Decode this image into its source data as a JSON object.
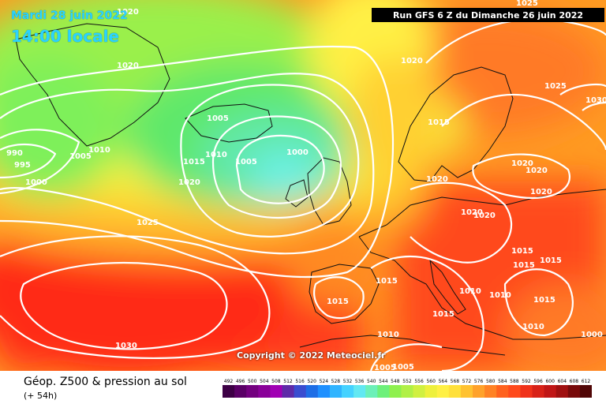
{
  "header": {
    "date": "Mardi 28 juin 2022",
    "time": "14:00 locale",
    "run": "Run GFS 6 Z du Dimanche 26 juin 2022"
  },
  "copyright": "Copyright © 2022 Meteociel.fr",
  "footer": {
    "title": "Géop. Z500 & pression au sol",
    "subtitle": "(+ 54h)"
  },
  "colors": {
    "land_outline": "#111111",
    "isobar": "#ffffff",
    "label_date": "#2bd3ff"
  },
  "isobar_labels": [
    {
      "text": "1020"
    },
    {
      "text": "1020"
    },
    {
      "text": "990"
    },
    {
      "text": "995"
    },
    {
      "text": "1000"
    },
    {
      "text": "1005"
    },
    {
      "text": "1010"
    },
    {
      "text": "1005"
    },
    {
      "text": "1010"
    },
    {
      "text": "1015"
    },
    {
      "text": "1005"
    },
    {
      "text": "1000"
    },
    {
      "text": "1020"
    },
    {
      "text": "1025"
    },
    {
      "text": "1030"
    },
    {
      "text": "1025"
    },
    {
      "text": "1020"
    },
    {
      "text": "1025"
    },
    {
      "text": "1030"
    },
    {
      "text": "1015"
    },
    {
      "text": "1020"
    },
    {
      "text": "1020"
    },
    {
      "text": "1020"
    },
    {
      "text": "1020"
    },
    {
      "text": "1020"
    },
    {
      "text": "1020"
    },
    {
      "text": "1015"
    },
    {
      "text": "1015"
    },
    {
      "text": "1015"
    },
    {
      "text": "1015"
    },
    {
      "text": "1015"
    },
    {
      "text": "1015"
    },
    {
      "text": "1010"
    },
    {
      "text": "1010"
    },
    {
      "text": "1015"
    },
    {
      "text": "1010"
    },
    {
      "text": "1010"
    },
    {
      "text": "1005"
    },
    {
      "text": "1005"
    },
    {
      "text": "1000"
    }
  ],
  "scale": {
    "values": [
      "492",
      "496",
      "500",
      "504",
      "508",
      "512",
      "516",
      "520",
      "524",
      "528",
      "532",
      "536",
      "540",
      "544",
      "548",
      "552",
      "556",
      "560",
      "564",
      "568",
      "572",
      "576",
      "580",
      "584",
      "588",
      "592",
      "596",
      "600",
      "604",
      "608",
      "612"
    ],
    "colors": [
      "#3d0045",
      "#5a0066",
      "#73007f",
      "#8a0099",
      "#a000b3",
      "#5f2aa8",
      "#3a4dd0",
      "#1e6ee6",
      "#1f90ff",
      "#30b4ff",
      "#45d2ff",
      "#62e8f2",
      "#6cf0b8",
      "#6df07a",
      "#8ef04e",
      "#b0f046",
      "#d0f040",
      "#eef03c",
      "#fff044",
      "#ffe03a",
      "#ffc230",
      "#ffa22a",
      "#ff8224",
      "#ff621e",
      "#ff4a1c",
      "#f0321a",
      "#d82218",
      "#c01616",
      "#a01010",
      "#780a0a",
      "#500606"
    ]
  }
}
